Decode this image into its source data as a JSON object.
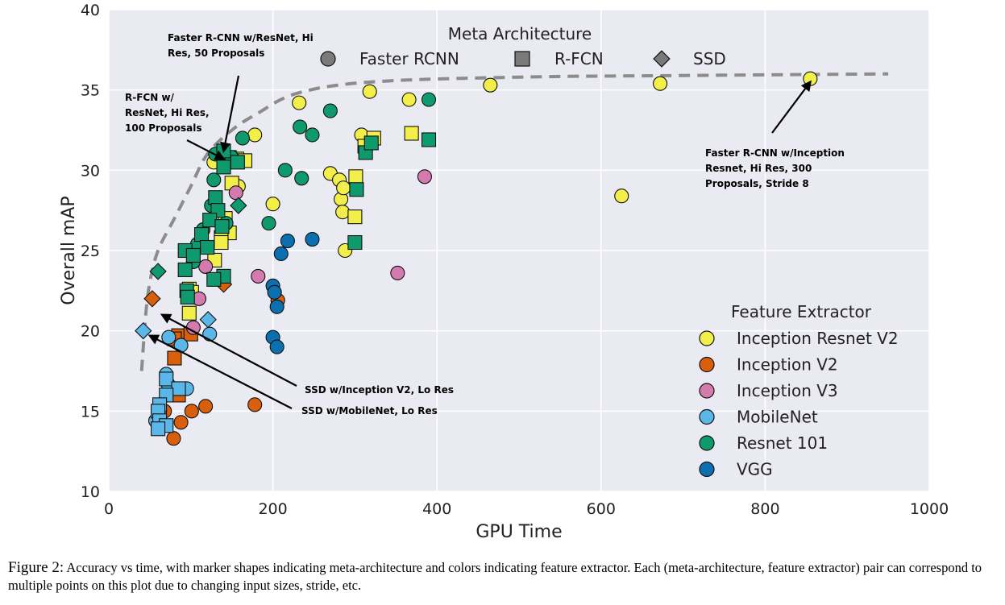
{
  "chart_data": {
    "type": "scatter",
    "xlabel": "GPU Time",
    "ylabel": "Overall mAP",
    "xlim": [
      0,
      1000
    ],
    "ylim": [
      10,
      40
    ],
    "xticks": [
      "0",
      "200",
      "400",
      "600",
      "800",
      "1000"
    ],
    "yticks": [
      "10",
      "15",
      "20",
      "25",
      "30",
      "35",
      "40"
    ],
    "grid": true,
    "background": "#eaeaf2",
    "legend_shape": {
      "title": "Meta Architecture",
      "placement": "top",
      "entries": [
        {
          "label": "Faster RCNN",
          "shape": "circle"
        },
        {
          "label": "R-FCN",
          "shape": "square"
        },
        {
          "label": "SSD",
          "shape": "diamond"
        }
      ]
    },
    "legend_color": {
      "title": "Feature Extractor",
      "placement": "right",
      "entries": [
        {
          "label": "Inception Resnet V2",
          "color": "#f3ef4a"
        },
        {
          "label": "Inception V2",
          "color": "#d8600c"
        },
        {
          "label": "Inception V3",
          "color": "#d57aaf"
        },
        {
          "label": "MobileNet",
          "color": "#5ab7e8"
        },
        {
          "label": "Resnet 101",
          "color": "#0f9a6e"
        },
        {
          "label": "VGG",
          "color": "#0b6fb0"
        }
      ]
    },
    "frontier": [
      [
        40,
        17.5
      ],
      [
        45,
        21
      ],
      [
        50,
        23
      ],
      [
        60,
        25
      ],
      [
        80,
        27
      ],
      [
        100,
        29
      ],
      [
        120,
        31
      ],
      [
        150,
        32.5
      ],
      [
        180,
        33.5
      ],
      [
        230,
        34.8
      ],
      [
        320,
        35.5
      ],
      [
        500,
        35.8
      ],
      [
        700,
        35.9
      ],
      [
        950,
        36
      ]
    ],
    "annotations": [
      {
        "text": [
          "Faster R-CNN w/ResNet, Hi",
          "Res, 50 Proposals"
        ],
        "target": [
          140,
          31.5
        ]
      },
      {
        "text": [
          "R-FCN w/",
          "ResNet, Hi Res,",
          "100 Proposals"
        ],
        "target": [
          140,
          31
        ]
      },
      {
        "text": [
          "Faster R-CNN w/Inception",
          "Resnet, Hi Res, 300",
          "Proposals, Stride 8"
        ],
        "target": [
          855,
          35.8
        ]
      },
      {
        "text": [
          "SSD w/Inception V2, Lo Res"
        ],
        "target": [
          65,
          21.3
        ]
      },
      {
        "text": [
          "SSD w/MobileNet, Lo Res"
        ],
        "target": [
          50,
          20
        ]
      }
    ],
    "series": [
      {
        "name": "Inception Resnet V2",
        "color": "#f3ef4a",
        "points": [
          [
            232,
            34.2
          ],
          [
            318,
            34.9
          ],
          [
            366,
            34.4
          ],
          [
            465,
            35.3
          ],
          [
            672,
            35.4
          ],
          [
            855,
            35.7
          ],
          [
            178,
            32.2
          ],
          [
            308,
            32.2
          ],
          [
            270,
            29.8
          ],
          [
            281,
            29.4
          ],
          [
            283,
            28.2
          ],
          [
            286,
            28.9
          ],
          [
            285,
            27.4
          ],
          [
            288,
            25.0
          ],
          [
            200,
            27.9
          ],
          [
            625,
            28.4
          ],
          [
            158,
            29.0
          ],
          [
            128,
            30.5
          ],
          [
            147,
            30.8
          ],
          [
            156,
            30.7
          ],
          [
            166,
            30.6
          ],
          [
            150,
            29.2
          ],
          [
            142,
            27.0
          ],
          [
            147,
            26.1
          ],
          [
            137,
            25.8
          ],
          [
            137,
            25.5
          ],
          [
            129,
            24.4
          ],
          [
            98,
            22.6
          ],
          [
            101,
            22.4
          ],
          [
            98,
            21.1
          ],
          [
            312,
            31.5
          ],
          [
            323,
            32.0
          ],
          [
            369,
            32.3
          ],
          [
            301,
            29.6
          ],
          [
            300,
            27.1
          ]
        ]
      },
      {
        "name": "Inception V2",
        "color": "#d8600c",
        "points": [
          [
            101,
            15.0
          ],
          [
            118,
            15.3
          ],
          [
            178,
            15.4
          ],
          [
            68,
            15.0
          ],
          [
            88,
            14.3
          ],
          [
            79,
            13.3
          ],
          [
            206,
            21.9
          ],
          [
            85,
            19.7
          ],
          [
            80,
            19.5
          ],
          [
            100,
            19.8
          ],
          [
            80,
            18.3
          ],
          [
            85,
            16.0
          ],
          [
            53,
            22.0
          ],
          [
            140,
            22.9
          ]
        ]
      },
      {
        "name": "Inception V3",
        "color": "#d57aaf",
        "points": [
          [
            155,
            28.6
          ],
          [
            385,
            29.6
          ],
          [
            352,
            23.6
          ],
          [
            182,
            23.4
          ],
          [
            118,
            24.0
          ],
          [
            110,
            22.0
          ],
          [
            103,
            20.2
          ]
        ]
      },
      {
        "name": "MobileNet",
        "color": "#5ab7e8",
        "points": [
          [
            70,
            17.3
          ],
          [
            72,
            16.7
          ],
          [
            95,
            16.4
          ],
          [
            62,
            15.0
          ],
          [
            57,
            14.4
          ],
          [
            60,
            14.0
          ],
          [
            123,
            19.8
          ],
          [
            88,
            19.1
          ],
          [
            73,
            19.6
          ],
          [
            70,
            17.0
          ],
          [
            85,
            16.4
          ],
          [
            70,
            16.0
          ],
          [
            62,
            15.4
          ],
          [
            60,
            15.0
          ],
          [
            62,
            14.4
          ],
          [
            70,
            14.1
          ],
          [
            60,
            13.9
          ],
          [
            42,
            20.0
          ],
          [
            121,
            20.7
          ]
        ]
      },
      {
        "name": "Resnet 101",
        "color": "#0f9a6e",
        "points": [
          [
            163,
            32.0
          ],
          [
            233,
            32.7
          ],
          [
            248,
            32.2
          ],
          [
            270,
            33.7
          ],
          [
            390,
            34.4
          ],
          [
            215,
            30.0
          ],
          [
            235,
            29.5
          ],
          [
            195,
            26.7
          ],
          [
            128,
            29.4
          ],
          [
            115,
            26.3
          ],
          [
            125,
            27.8
          ],
          [
            150,
            30.8
          ],
          [
            130,
            31.0
          ],
          [
            108,
            25.4
          ],
          [
            103,
            24.3
          ],
          [
            143,
            26.7
          ],
          [
            140,
            31.2
          ],
          [
            140,
            30.2
          ],
          [
            130,
            28.3
          ],
          [
            133,
            27.5
          ],
          [
            123,
            26.9
          ],
          [
            138,
            26.5
          ],
          [
            113,
            26.0
          ],
          [
            120,
            25.2
          ],
          [
            93,
            25.0
          ],
          [
            103,
            24.7
          ],
          [
            93,
            23.8
          ],
          [
            140,
            23.4
          ],
          [
            128,
            23.2
          ],
          [
            95,
            22.5
          ],
          [
            96,
            22.1
          ],
          [
            157,
            30.5
          ],
          [
            313,
            31.1
          ],
          [
            320,
            31.7
          ],
          [
            390,
            31.9
          ],
          [
            302,
            28.8
          ],
          [
            300,
            25.5
          ],
          [
            158,
            27.8
          ],
          [
            60,
            23.7
          ]
        ]
      },
      {
        "name": "VGG",
        "color": "#0b6fb0",
        "points": [
          [
            248,
            25.7
          ],
          [
            218,
            25.6
          ],
          [
            210,
            24.8
          ],
          [
            200,
            22.8
          ],
          [
            202,
            22.4
          ],
          [
            205,
            21.5
          ],
          [
            200,
            19.6
          ],
          [
            205,
            19.0
          ]
        ]
      }
    ],
    "shape_of_point": {
      "Inception Resnet V2": [
        "circle",
        18,
        "square",
        17
      ],
      "Inception V2": [
        "circle",
        7,
        "square",
        5,
        "diamond",
        2
      ],
      "Inception V3": [
        "circle",
        7
      ],
      "MobileNet": [
        "circle",
        9,
        "square",
        8,
        "diamond",
        2
      ],
      "Resnet 101": [
        "circle",
        16,
        "square",
        21,
        "diamond",
        2
      ],
      "VGG": [
        "circle",
        8
      ]
    }
  },
  "caption": {
    "lead": "Figure 2:",
    "text": "Accuracy vs time, with marker shapes indicating meta-architecture and colors indicating feature extractor. Each (meta-architecture, feature extractor) pair can correspond to multiple points on this plot due to changing input sizes, stride, etc."
  }
}
